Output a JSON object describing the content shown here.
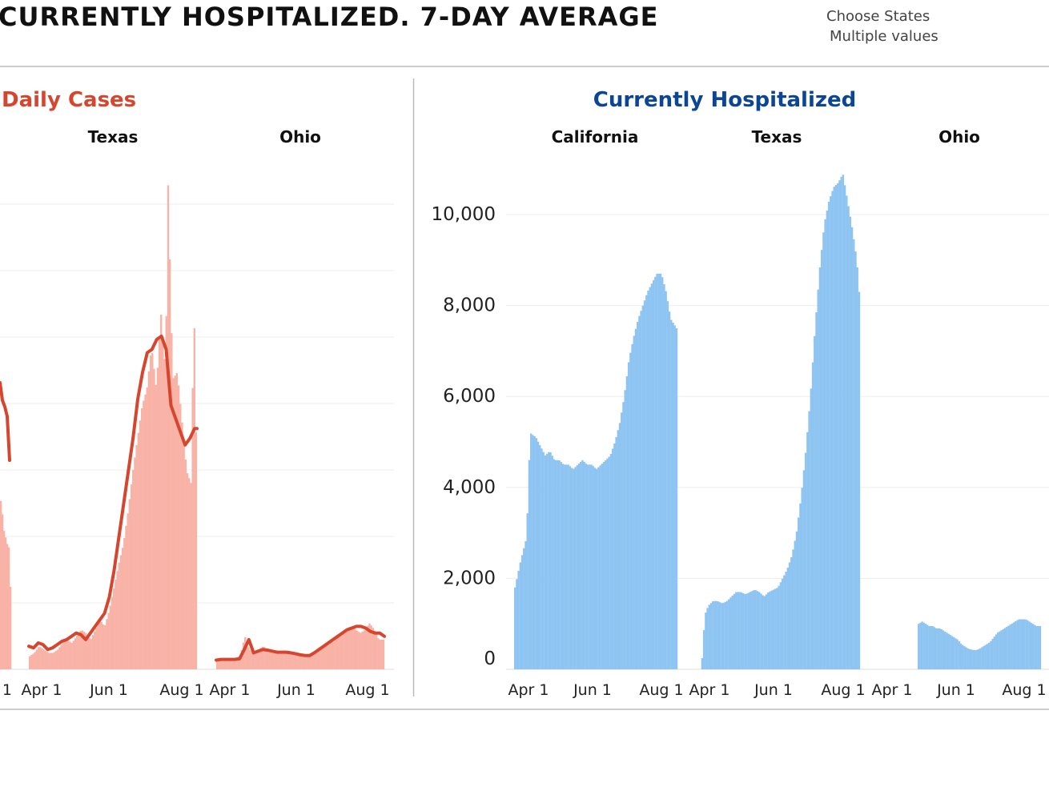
{
  "header": {
    "title": "CURRENTLY HOSPITALIZED. 7-DAY AVERAGE",
    "filter_label": "Choose States",
    "filter_value": "Multiple values"
  },
  "colors": {
    "cases_title": "#d6462f",
    "cases_bar": "#f8b2a6",
    "cases_line": "#d6462f",
    "hosp_title": "#0a4695",
    "hosp_bar": "#8ec4f1",
    "grid": "#eeeeee",
    "divider": "#bbbbbb"
  },
  "chart_data": [
    {
      "type": "bar",
      "title": "Daily Cases",
      "title_color": "#d6462f",
      "panels": [
        "Texas",
        "Ohio"
      ],
      "x_ticks": [
        "Apr 1",
        "Jun 1",
        "Aug 1"
      ],
      "clipped_left_tick": "1",
      "ylim": [
        0,
        15000
      ],
      "series": [
        {
          "panel": "Texas",
          "daily": [
            [
              0,
              400
            ],
            [
              4,
              500
            ],
            [
              8,
              700
            ],
            [
              12,
              600
            ],
            [
              16,
              500
            ],
            [
              20,
              500
            ],
            [
              24,
              600
            ],
            [
              28,
              800
            ],
            [
              32,
              900
            ],
            [
              36,
              800
            ],
            [
              40,
              1000
            ],
            [
              44,
              1200
            ],
            [
              48,
              1100
            ],
            [
              52,
              900
            ],
            [
              56,
              1200
            ],
            [
              60,
              1500
            ],
            [
              64,
              1300
            ],
            [
              68,
              1800
            ],
            [
              72,
              2500
            ],
            [
              76,
              3200
            ],
            [
              80,
              3800
            ],
            [
              84,
              4800
            ],
            [
              88,
              6000
            ],
            [
              92,
              7000
            ],
            [
              96,
              8000
            ],
            [
              100,
              8500
            ],
            [
              104,
              9800
            ],
            [
              108,
              8500
            ],
            [
              112,
              10800
            ],
            [
              116,
              9000
            ],
            [
              118,
              14800
            ],
            [
              122,
              8800
            ],
            [
              126,
              9000
            ],
            [
              130,
              7500
            ],
            [
              134,
              6000
            ],
            [
              138,
              5600
            ],
            [
              140,
              11400
            ],
            [
              142,
              7200
            ]
          ],
          "avg": [
            [
              0,
              700
            ],
            [
              4,
              650
            ],
            [
              8,
              800
            ],
            [
              12,
              750
            ],
            [
              16,
              600
            ],
            [
              20,
              650
            ],
            [
              24,
              750
            ],
            [
              28,
              850
            ],
            [
              32,
              900
            ],
            [
              36,
              1000
            ],
            [
              40,
              1100
            ],
            [
              44,
              1050
            ],
            [
              48,
              900
            ],
            [
              52,
              1100
            ],
            [
              56,
              1300
            ],
            [
              60,
              1500
            ],
            [
              64,
              1700
            ],
            [
              68,
              2200
            ],
            [
              72,
              3000
            ],
            [
              76,
              4000
            ],
            [
              80,
              5000
            ],
            [
              84,
              6000
            ],
            [
              88,
              7000
            ],
            [
              92,
              8200
            ],
            [
              96,
              9000
            ],
            [
              100,
              9600
            ],
            [
              104,
              9700
            ],
            [
              108,
              10000
            ],
            [
              112,
              10100
            ],
            [
              116,
              9700
            ],
            [
              120,
              8000
            ],
            [
              124,
              7600
            ],
            [
              128,
              7200
            ],
            [
              132,
              6800
            ],
            [
              136,
              7000
            ],
            [
              140,
              7300
            ],
            [
              142,
              7300
            ]
          ]
        },
        {
          "panel": "Ohio",
          "daily": [
            [
              0,
              300
            ],
            [
              4,
              350
            ],
            [
              8,
              300
            ],
            [
              12,
              300
            ],
            [
              16,
              350
            ],
            [
              20,
              400
            ],
            [
              24,
              1000
            ],
            [
              28,
              600
            ],
            [
              32,
              500
            ],
            [
              36,
              600
            ],
            [
              40,
              700
            ],
            [
              44,
              600
            ],
            [
              48,
              500
            ],
            [
              52,
              500
            ],
            [
              56,
              500
            ],
            [
              60,
              550
            ],
            [
              64,
              500
            ],
            [
              68,
              500
            ],
            [
              72,
              450
            ],
            [
              76,
              450
            ],
            [
              80,
              400
            ],
            [
              84,
              500
            ],
            [
              88,
              600
            ],
            [
              92,
              700
            ],
            [
              96,
              800
            ],
            [
              100,
              900
            ],
            [
              104,
              1000
            ],
            [
              108,
              1100
            ],
            [
              112,
              1200
            ],
            [
              116,
              1300
            ],
            [
              120,
              1200
            ],
            [
              124,
              1100
            ],
            [
              128,
              1200
            ],
            [
              132,
              1400
            ],
            [
              136,
              1200
            ],
            [
              140,
              900
            ],
            [
              144,
              900
            ]
          ],
          "avg": [
            [
              0,
              280
            ],
            [
              4,
              300
            ],
            [
              8,
              300
            ],
            [
              12,
              300
            ],
            [
              16,
              300
            ],
            [
              20,
              320
            ],
            [
              24,
              600
            ],
            [
              28,
              900
            ],
            [
              32,
              500
            ],
            [
              36,
              550
            ],
            [
              40,
              600
            ],
            [
              44,
              580
            ],
            [
              48,
              550
            ],
            [
              52,
              520
            ],
            [
              56,
              520
            ],
            [
              60,
              520
            ],
            [
              64,
              500
            ],
            [
              68,
              470
            ],
            [
              72,
              440
            ],
            [
              76,
              420
            ],
            [
              80,
              420
            ],
            [
              84,
              500
            ],
            [
              88,
              600
            ],
            [
              92,
              700
            ],
            [
              96,
              800
            ],
            [
              100,
              900
            ],
            [
              104,
              1000
            ],
            [
              108,
              1100
            ],
            [
              112,
              1200
            ],
            [
              116,
              1250
            ],
            [
              120,
              1300
            ],
            [
              124,
              1300
            ],
            [
              128,
              1250
            ],
            [
              132,
              1150
            ],
            [
              136,
              1100
            ],
            [
              140,
              1100
            ],
            [
              144,
              1000
            ]
          ]
        }
      ]
    },
    {
      "type": "bar",
      "title": "Currently Hospitalized",
      "title_color": "#0a4695",
      "panels": [
        "California",
        "Texas",
        "Ohio"
      ],
      "x_ticks": [
        "Apr 1",
        "Jun 1",
        "Aug 1"
      ],
      "ylim": [
        0,
        11000
      ],
      "y_ticks": [
        0,
        2000,
        4000,
        6000,
        8000,
        10000
      ],
      "y_tick_labels": [
        "0",
        "2,000",
        "4,000",
        "6,000",
        "8,000",
        "10,000"
      ],
      "series": [
        {
          "panel": "California",
          "values": [
            [
              0,
              1800
            ],
            [
              5,
              2400
            ],
            [
              10,
              2900
            ],
            [
              13,
              5200
            ],
            [
              18,
              5100
            ],
            [
              22,
              4900
            ],
            [
              26,
              4700
            ],
            [
              30,
              4800
            ],
            [
              34,
              4600
            ],
            [
              38,
              4600
            ],
            [
              42,
              4500
            ],
            [
              46,
              4500
            ],
            [
              50,
              4400
            ],
            [
              54,
              4500
            ],
            [
              58,
              4600
            ],
            [
              62,
              4500
            ],
            [
              66,
              4500
            ],
            [
              70,
              4400
            ],
            [
              74,
              4500
            ],
            [
              78,
              4600
            ],
            [
              82,
              4700
            ],
            [
              86,
              5000
            ],
            [
              90,
              5400
            ],
            [
              94,
              6000
            ],
            [
              98,
              6800
            ],
            [
              102,
              7300
            ],
            [
              106,
              7700
            ],
            [
              110,
              8000
            ],
            [
              114,
              8300
            ],
            [
              118,
              8500
            ],
            [
              122,
              8700
            ],
            [
              126,
              8700
            ],
            [
              130,
              8300
            ],
            [
              134,
              7700
            ],
            [
              139,
              7500
            ]
          ]
        },
        {
          "panel": "Texas",
          "values": [
            [
              0,
              0
            ],
            [
              4,
              0
            ],
            [
              7,
              1200
            ],
            [
              10,
              1400
            ],
            [
              14,
              1500
            ],
            [
              18,
              1500
            ],
            [
              22,
              1450
            ],
            [
              26,
              1500
            ],
            [
              30,
              1600
            ],
            [
              34,
              1700
            ],
            [
              38,
              1700
            ],
            [
              42,
              1650
            ],
            [
              46,
              1700
            ],
            [
              50,
              1750
            ],
            [
              54,
              1700
            ],
            [
              58,
              1600
            ],
            [
              62,
              1700
            ],
            [
              66,
              1750
            ],
            [
              70,
              1800
            ],
            [
              74,
              2000
            ],
            [
              78,
              2200
            ],
            [
              82,
              2500
            ],
            [
              86,
              3000
            ],
            [
              90,
              3800
            ],
            [
              94,
              4800
            ],
            [
              98,
              6000
            ],
            [
              102,
              7500
            ],
            [
              106,
              8800
            ],
            [
              110,
              9800
            ],
            [
              114,
              10300
            ],
            [
              118,
              10600
            ],
            [
              122,
              10700
            ],
            [
              126,
              10900
            ],
            [
              130,
              10300
            ],
            [
              134,
              9700
            ],
            [
              138,
              9000
            ],
            [
              140,
              8300
            ]
          ]
        },
        {
          "panel": "Ohio",
          "values": [
            [
              0,
              1000
            ],
            [
              4,
              1050
            ],
            [
              8,
              1000
            ],
            [
              12,
              950
            ],
            [
              16,
              950
            ],
            [
              20,
              900
            ],
            [
              24,
              900
            ],
            [
              28,
              850
            ],
            [
              32,
              800
            ],
            [
              36,
              750
            ],
            [
              40,
              700
            ],
            [
              44,
              650
            ],
            [
              48,
              550
            ],
            [
              52,
              500
            ],
            [
              56,
              450
            ],
            [
              60,
              430
            ],
            [
              64,
              420
            ],
            [
              68,
              450
            ],
            [
              72,
              500
            ],
            [
              76,
              550
            ],
            [
              80,
              600
            ],
            [
              84,
              700
            ],
            [
              88,
              800
            ],
            [
              92,
              850
            ],
            [
              96,
              900
            ],
            [
              100,
              950
            ],
            [
              104,
              1000
            ],
            [
              108,
              1050
            ],
            [
              112,
              1100
            ],
            [
              116,
              1100
            ],
            [
              120,
              1100
            ],
            [
              124,
              1050
            ],
            [
              128,
              1000
            ],
            [
              132,
              950
            ],
            [
              136,
              950
            ]
          ]
        }
      ]
    }
  ]
}
